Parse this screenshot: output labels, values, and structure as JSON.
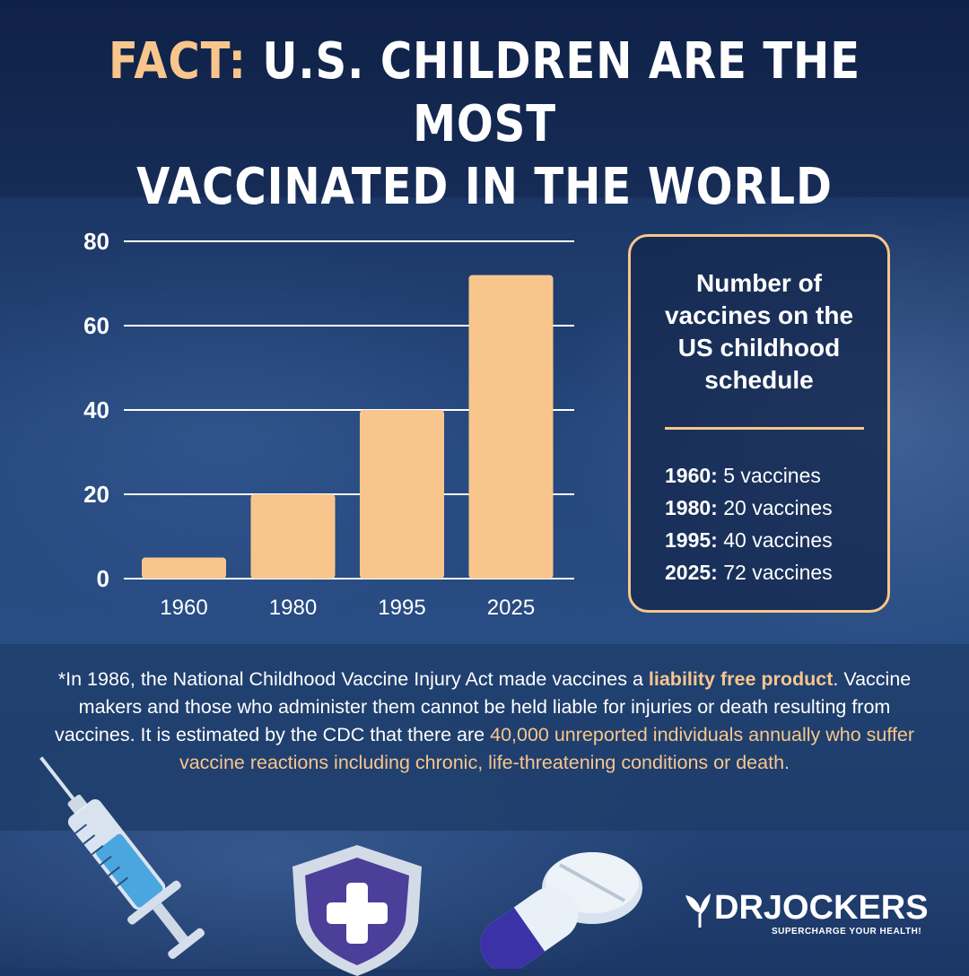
{
  "header": {
    "title_accent": "FACT:",
    "title_line1": " U.S. CHILDREN ARE THE MOST",
    "title_line2": "VACCINATED IN THE WORLD"
  },
  "chart_data": {
    "type": "bar",
    "categories": [
      "1960",
      "1980",
      "1995",
      "2025"
    ],
    "values": [
      5,
      20,
      40,
      72
    ],
    "ylim": [
      0,
      80
    ],
    "yticks": [
      0,
      20,
      40,
      60,
      80
    ],
    "grid": true,
    "colors": {
      "bar": "#f8c68c",
      "grid": "#ffffff",
      "text": "#ffffff"
    }
  },
  "infobox": {
    "title": "Number of vaccines on the US childhood schedule",
    "items": [
      {
        "year": "1960:",
        "text": " 5 vaccines"
      },
      {
        "year": "1980:",
        "text": " 20 vaccines"
      },
      {
        "year": "1995:",
        "text": " 40 vaccines"
      },
      {
        "year": "2025:",
        "text": " 72 vaccines"
      }
    ]
  },
  "footnote": {
    "p1": "*In 1986, the National Childhood Vaccine Injury Act made vaccines a ",
    "highlight1": "liability free product",
    "p2": ". Vaccine makers and those who administer them cannot be held liable for injuries or death resulting from vaccines. It is estimated by the CDC that there are ",
    "highlight2": "40,000 unreported individuals annually who suffer vaccine reactions including chronic, life-threatening conditions or death."
  },
  "icons": [
    "syringe-icon",
    "shield-cross-icon",
    "pill-capsule-icon",
    "leaf-logo-icon"
  ],
  "logo": {
    "name": "DRJOCKERS",
    "tagline": "SUPERCHARGE YOUR HEALTH!"
  }
}
